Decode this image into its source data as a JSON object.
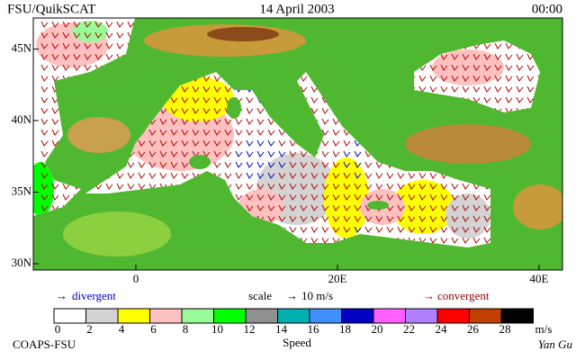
{
  "header": {
    "left": "FSU/QuikSCAT",
    "center": "14 April 2003",
    "right": "00:00"
  },
  "map": {
    "lat_ticks": [
      {
        "value": 45,
        "label": "45N"
      },
      {
        "value": 40,
        "label": "40N"
      },
      {
        "value": 35,
        "label": "35N"
      },
      {
        "value": 30,
        "label": "30N"
      }
    ],
    "lon_ticks": [
      {
        "value": 0,
        "label": "0"
      },
      {
        "value": 20,
        "label": "20E"
      },
      {
        "value": 40,
        "label": "40E"
      }
    ]
  },
  "legend": {
    "divergent": "divergent",
    "scale": "scale",
    "scale_value": "10 m/s",
    "convergent": "convergent"
  },
  "colorbar": {
    "colors": [
      "#ffffff",
      "#d3d3d3",
      "#ffff00",
      "#ffc0c0",
      "#98fb98",
      "#00ff00",
      "#909090",
      "#00b0b0",
      "#4090ff",
      "#0000c0",
      "#ff60ff",
      "#b080ff",
      "#ff0000",
      "#c04000",
      "#000000"
    ],
    "ticks": [
      0,
      2,
      4,
      6,
      8,
      10,
      12,
      14,
      16,
      18,
      20,
      22,
      24,
      26,
      28
    ],
    "unit": "m/s",
    "title": "Speed"
  },
  "footer": {
    "left": "COAPS-FSU",
    "right": "Yan Gu"
  }
}
